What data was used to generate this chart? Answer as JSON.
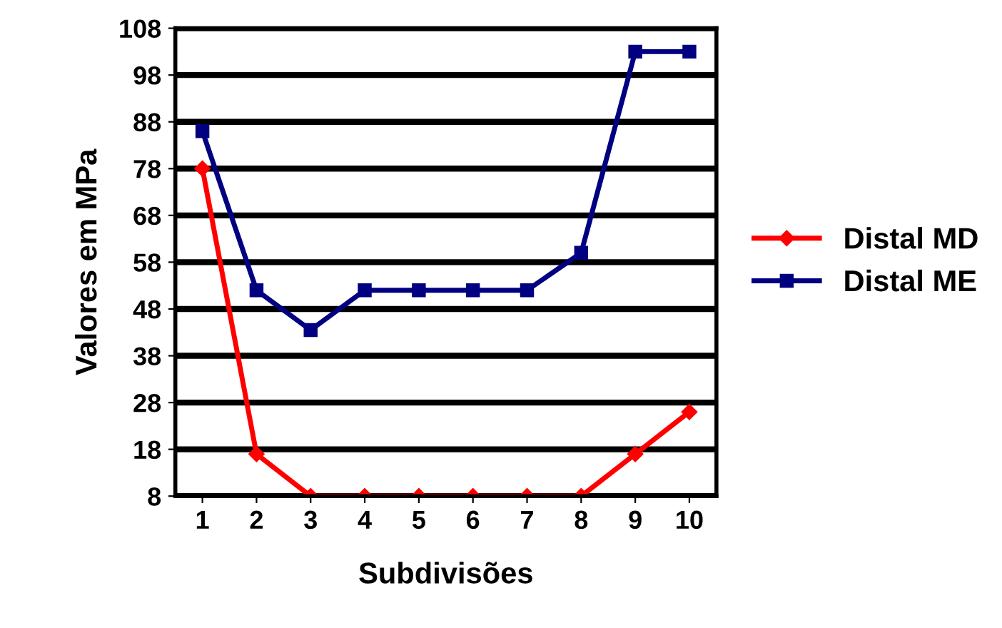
{
  "chart_data": {
    "type": "line",
    "xlabel": "Subdivisões",
    "ylabel": "Valores em MPa",
    "categories": [
      "1",
      "2",
      "3",
      "4",
      "5",
      "6",
      "7",
      "8",
      "9",
      "10"
    ],
    "series": [
      {
        "name": "Distal MD",
        "color": "#ff0000",
        "marker": "diamond",
        "values": [
          78,
          17,
          8,
          8,
          8,
          8,
          8,
          8,
          17,
          26
        ]
      },
      {
        "name": "Distal ME",
        "color": "#000080",
        "marker": "square",
        "values": [
          86,
          52,
          43.5,
          52,
          52,
          52,
          52,
          60,
          103,
          103
        ]
      }
    ],
    "ylim": [
      8,
      108
    ],
    "yticks": [
      8,
      18,
      28,
      38,
      48,
      58,
      68,
      78,
      88,
      98,
      108
    ],
    "grid": "y",
    "legend": "right",
    "line_style": "solid"
  }
}
